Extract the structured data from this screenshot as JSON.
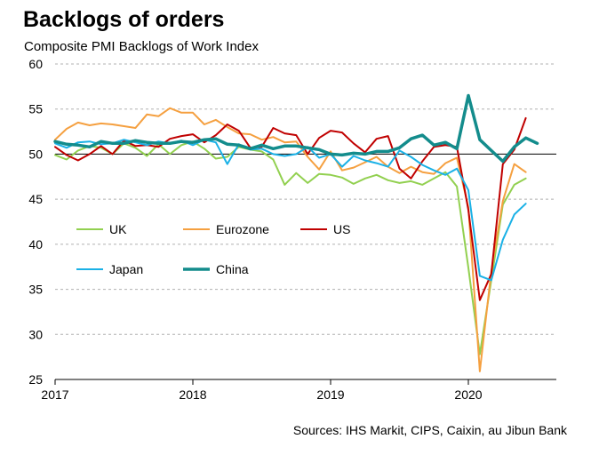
{
  "title": "Backlogs of orders",
  "subtitle": "Composite PMI Backlogs of Work Index",
  "source": "Sources: IHS Markit, CIPS, Caixin, au Jibun Bank",
  "chart_data": {
    "type": "line",
    "title": "Backlogs of orders",
    "ylabel": "Composite PMI Backlogs of Work Index",
    "xlabel": "",
    "x_ticks": [
      "2017",
      "2018",
      "2019",
      "2020"
    ],
    "y_ticks": [
      25,
      30,
      35,
      40,
      45,
      50,
      55,
      60
    ],
    "ylim": [
      25,
      60
    ],
    "x_start": "2017-01",
    "x_end": "2020-08",
    "grid": true,
    "reference_line": 50,
    "legend": "inside-lower-left",
    "series": [
      {
        "name": "UK",
        "color": "#92d050",
        "width": 2,
        "values": [
          49.9,
          49.4,
          50.4,
          50.9,
          50.7,
          50.0,
          51.2,
          50.7,
          49.8,
          51.1,
          50.0,
          51.0,
          51.4,
          50.6,
          49.5,
          49.7,
          50.8,
          50.5,
          50.3,
          49.4,
          46.6,
          47.9,
          46.8,
          47.8,
          47.7,
          47.4,
          46.7,
          47.3,
          47.7,
          47.1,
          46.8,
          47.0,
          46.6,
          47.3,
          48.0,
          46.4,
          37.4,
          27.8,
          36.0,
          44.4,
          46.6,
          47.3
        ]
      },
      {
        "name": "Eurozone",
        "color": "#f5a040",
        "width": 2,
        "values": [
          51.6,
          52.8,
          53.5,
          53.2,
          53.4,
          53.3,
          53.1,
          52.9,
          54.4,
          54.2,
          55.1,
          54.6,
          54.6,
          53.3,
          53.8,
          53.0,
          52.3,
          52.2,
          51.6,
          51.9,
          51.3,
          51.4,
          49.7,
          48.3,
          50.3,
          48.2,
          48.5,
          49.1,
          49.7,
          48.6,
          47.9,
          48.6,
          48.0,
          47.8,
          49.0,
          49.6,
          44.1,
          25.9,
          37.0,
          44.8,
          48.9,
          48.0
        ]
      },
      {
        "name": "US",
        "color": "#c00000",
        "width": 2,
        "values": [
          50.8,
          49.9,
          49.3,
          50.0,
          50.9,
          50.0,
          51.5,
          50.9,
          51.0,
          50.8,
          51.7,
          52.0,
          52.2,
          51.3,
          52.1,
          53.3,
          52.6,
          50.7,
          50.8,
          52.9,
          52.3,
          52.1,
          50.0,
          51.8,
          52.6,
          52.4,
          51.2,
          50.2,
          51.7,
          52.0,
          48.4,
          47.3,
          49.2,
          50.8,
          51.0,
          50.8,
          43.8,
          33.8,
          36.7,
          48.9,
          50.5,
          54.0
        ]
      },
      {
        "name": "Japan",
        "color": "#1ab1e6",
        "width": 2,
        "values": [
          51.2,
          50.7,
          51.3,
          51.4,
          51.1,
          51.2,
          51.6,
          51.3,
          51.0,
          51.4,
          51.2,
          51.5,
          51.0,
          51.6,
          51.3,
          48.9,
          51.1,
          50.5,
          50.6,
          50.0,
          49.8,
          50.0,
          50.8,
          49.6,
          50.0,
          48.6,
          49.8,
          49.3,
          49.0,
          48.6,
          50.4,
          49.7,
          48.8,
          48.2,
          47.7,
          48.4,
          46.0,
          36.5,
          36.0,
          40.5,
          43.3,
          44.5
        ]
      },
      {
        "name": "China",
        "color": "#138c8c",
        "width": 3.5,
        "values": [
          51.4,
          51.1,
          51.0,
          50.8,
          51.4,
          51.2,
          51.2,
          51.5,
          51.3,
          51.2,
          51.2,
          51.4,
          51.3,
          51.6,
          51.7,
          51.1,
          51.0,
          50.6,
          51.0,
          50.6,
          50.9,
          50.9,
          50.7,
          50.5,
          50.0,
          49.9,
          50.1,
          50.0,
          50.3,
          50.3,
          50.7,
          51.7,
          52.1,
          51.0,
          51.3,
          50.6,
          56.5,
          51.6,
          50.4,
          49.2,
          50.8,
          51.8,
          51.2
        ]
      }
    ]
  }
}
